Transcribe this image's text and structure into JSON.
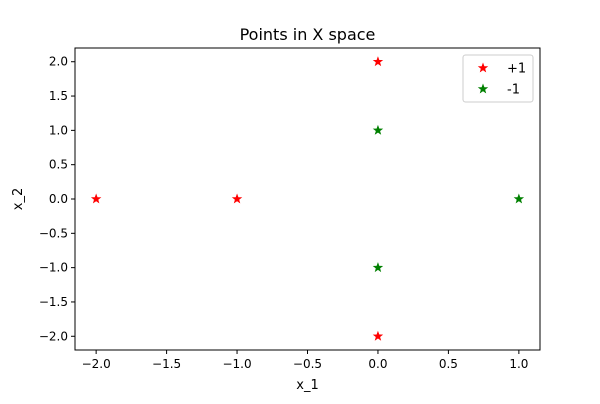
{
  "chart_data": {
    "type": "scatter",
    "title": "Points in X space",
    "xlabel": "x_1",
    "ylabel": "x_2",
    "xlim": [
      -2.15,
      1.15
    ],
    "ylim": [
      -2.2,
      2.2
    ],
    "xticks": [
      -2.0,
      -1.5,
      -1.0,
      -0.5,
      0.0,
      0.5,
      1.0
    ],
    "yticks": [
      -2.0,
      -1.5,
      -1.0,
      -0.5,
      0.0,
      0.5,
      1.0,
      1.5,
      2.0
    ],
    "xtick_labels": [
      "−2.0",
      "−1.5",
      "−1.0",
      "−0.5",
      "0.0",
      "0.5",
      "1.0"
    ],
    "ytick_labels": [
      "−2.0",
      "−1.5",
      "−1.0",
      "−0.5",
      "0.0",
      "0.5",
      "1.0",
      "1.5",
      "2.0"
    ],
    "grid": false,
    "legend_position": "top-right",
    "marker": "star",
    "series": [
      {
        "name": "+1",
        "color": "#ff0000",
        "points": [
          {
            "x": 0,
            "y": 2
          },
          {
            "x": -2,
            "y": 0
          },
          {
            "x": -1,
            "y": 0
          },
          {
            "x": 0,
            "y": -2
          }
        ]
      },
      {
        "name": "-1",
        "color": "#008000",
        "points": [
          {
            "x": 0,
            "y": 1
          },
          {
            "x": 1,
            "y": 0
          },
          {
            "x": 0,
            "y": -1
          }
        ]
      }
    ]
  }
}
